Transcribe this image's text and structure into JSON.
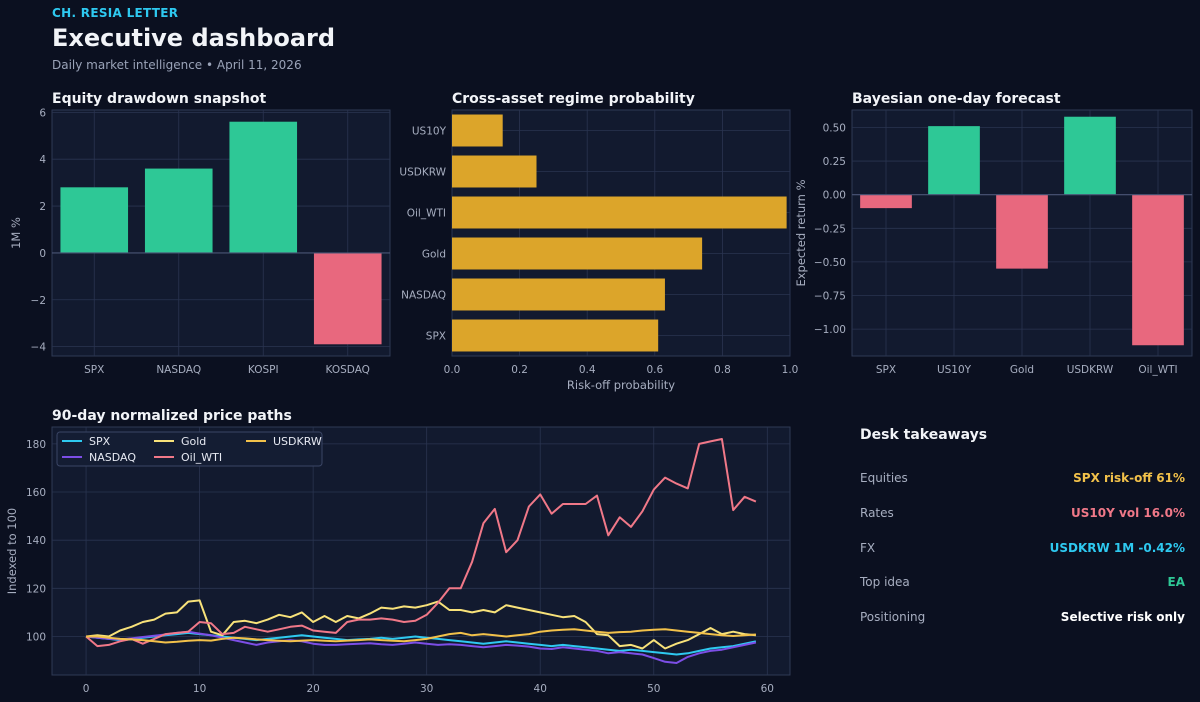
{
  "header": {
    "brand": "CH. RESIA LETTER",
    "title": "Executive dashboard",
    "subtitle": "Daily market intelligence • April 11, 2026"
  },
  "colors": {
    "positive": "#2ec896",
    "negative": "#e8687e",
    "gold_bar": "#dca52a",
    "accent_cyan": "#2ec9f0",
    "panel_bg": "#121a2f"
  },
  "chart_data": [
    {
      "id": "drawdown",
      "type": "bar",
      "title": "Equity drawdown snapshot",
      "ylabel": "1M %",
      "xlabel": "",
      "categories": [
        "SPX",
        "NASDAQ",
        "KOSPI",
        "KOSDAQ"
      ],
      "values": [
        2.8,
        3.6,
        5.6,
        -3.9
      ],
      "ylim": [
        -4.4,
        6.1
      ],
      "yticks": [
        -4,
        -2,
        0,
        2,
        4,
        6
      ],
      "ytick_labels": [
        "−4",
        "−2",
        "0",
        "2",
        "4",
        "6"
      ],
      "grid": true
    },
    {
      "id": "regime",
      "type": "bar",
      "orientation": "horizontal",
      "title": "Cross-asset regime probability",
      "xlabel": "Risk-off probability",
      "ylabel": "",
      "categories": [
        "SPX",
        "NASDAQ",
        "Gold",
        "Oil_WTI",
        "USDKRW",
        "US10Y"
      ],
      "values": [
        0.61,
        0.63,
        0.74,
        0.99,
        0.25,
        0.15
      ],
      "xlim": [
        0,
        1.0
      ],
      "xticks": [
        0,
        0.2,
        0.4,
        0.6,
        0.8,
        1.0
      ],
      "xtick_labels": [
        "0.0",
        "0.2",
        "0.4",
        "0.6",
        "0.8",
        "1.0"
      ],
      "grid": true
    },
    {
      "id": "forecast",
      "type": "bar",
      "title": "Bayesian one-day forecast",
      "ylabel": "Expected return %",
      "xlabel": "",
      "categories": [
        "SPX",
        "US10Y",
        "Gold",
        "USDKRW",
        "Oil_WTI"
      ],
      "values": [
        -0.1,
        0.51,
        -0.55,
        0.58,
        -1.12
      ],
      "ylim": [
        -1.2,
        0.63
      ],
      "yticks": [
        -1.0,
        -0.75,
        -0.5,
        -0.25,
        0.0,
        0.25,
        0.5
      ],
      "ytick_labels": [
        "−1.00",
        "−0.75",
        "−0.50",
        "−0.25",
        "0.00",
        "0.25",
        "0.50"
      ],
      "grid": true
    },
    {
      "id": "paths",
      "type": "line",
      "title": "90-day normalized price paths",
      "ylabel": "Indexed to 100",
      "xlabel": "",
      "xlim": [
        -3,
        62
      ],
      "ylim": [
        84,
        187
      ],
      "xticks": [
        0,
        10,
        20,
        30,
        40,
        50,
        60
      ],
      "yticks": [
        100,
        120,
        140,
        160,
        180
      ],
      "legend": "top-left",
      "grid": true,
      "series": [
        {
          "name": "SPX",
          "color": "#2ec9f0",
          "values": [
            100,
            99.5,
            99,
            98.5,
            98.8,
            99.5,
            100,
            100.5,
            101,
            101.5,
            101,
            100.5,
            100,
            99.5,
            99,
            98.5,
            99,
            99.5,
            100,
            100.5,
            100,
            99.5,
            99,
            98.5,
            98.8,
            99,
            99.5,
            99,
            99.5,
            100,
            99.5,
            99,
            98.5,
            98,
            97.5,
            97,
            97.5,
            98,
            97.5,
            97,
            96.5,
            96,
            96.5,
            96,
            95.5,
            95,
            94.5,
            94,
            94.5,
            94,
            93.5,
            93,
            92.5,
            93,
            94,
            95,
            95.5,
            96,
            97,
            98
          ]
        },
        {
          "name": "NASDAQ",
          "color": "#7c4ee6",
          "values": [
            100,
            99.5,
            99,
            98.8,
            99.2,
            99.8,
            100.3,
            100.8,
            101.5,
            102,
            101.2,
            100.5,
            99.5,
            98.5,
            97.5,
            96.5,
            97.5,
            98,
            98.5,
            98,
            97,
            96.5,
            96.5,
            96.8,
            97,
            97.2,
            96.8,
            96.5,
            97,
            97.5,
            97,
            96.5,
            96.8,
            96.5,
            96,
            95.5,
            96,
            96.5,
            96.2,
            95.8,
            95,
            94.8,
            95.5,
            95,
            94.5,
            94,
            93,
            93.5,
            93,
            92.5,
            91,
            89.5,
            89,
            91.5,
            93,
            94,
            94.5,
            95.5,
            96.5,
            97.5
          ]
        },
        {
          "name": "Gold",
          "color": "#f8e27a",
          "values": [
            100,
            100.5,
            100,
            102.5,
            104,
            106,
            107,
            109.5,
            110,
            114.5,
            115,
            102,
            100.5,
            106,
            106.5,
            105.5,
            107,
            109,
            108,
            110,
            106,
            108.5,
            106,
            108.5,
            107.5,
            109.5,
            112,
            111.5,
            112.5,
            112,
            113,
            114.5,
            111,
            111,
            110,
            111,
            110,
            113,
            112,
            111,
            110,
            109,
            108,
            108.5,
            106,
            101,
            100.5,
            96,
            96.5,
            95,
            98.5,
            95,
            97,
            98.5,
            101,
            103.5,
            101,
            102,
            101,
            100.5
          ]
        },
        {
          "name": "Oil_WTI",
          "color": "#f07888",
          "values": [
            100,
            96,
            96.5,
            98,
            99,
            97,
            99,
            101,
            101.5,
            102,
            106,
            105.5,
            101,
            101.5,
            104,
            103,
            102,
            103,
            104,
            104.5,
            102.5,
            102,
            101.5,
            106,
            107,
            107,
            107.5,
            107,
            106,
            106.5,
            109,
            114,
            120,
            120,
            131,
            147,
            153,
            135,
            140,
            154,
            159,
            151,
            155,
            155,
            155,
            158.5,
            142,
            149.5,
            145.5,
            152,
            161,
            166,
            163.5,
            161.5,
            180,
            181,
            182,
            152.5,
            158,
            156
          ]
        },
        {
          "name": "USDKRW",
          "color": "#f2c14a",
          "values": [
            100,
            100,
            99.5,
            99,
            98.8,
            98.5,
            98,
            97.5,
            97.8,
            98.2,
            98.5,
            98.3,
            99,
            99.5,
            99.2,
            98.8,
            98.5,
            98.2,
            98,
            98.3,
            98.5,
            98.2,
            98,
            98.3,
            98.5,
            98.8,
            98.5,
            98.2,
            98,
            98.5,
            99,
            100,
            101,
            101.5,
            100.5,
            101,
            100.5,
            100,
            100.5,
            101,
            102,
            102.5,
            102.8,
            103,
            102.5,
            102,
            101.5,
            101.8,
            102,
            102.5,
            102.8,
            103,
            102.5,
            102,
            101.5,
            101,
            100.5,
            100.2,
            100.5,
            100.8
          ]
        }
      ]
    }
  ],
  "panel": {
    "title": "Desk takeaways",
    "rows": [
      {
        "label": "Equities",
        "value": "SPX risk-off 61%",
        "color": "#f2c14a"
      },
      {
        "label": "Rates",
        "value": "US10Y vol 16.0%",
        "color": "#f07888"
      },
      {
        "label": "FX",
        "value": "USDKRW 1M -0.42%",
        "color": "#2ec9f0"
      },
      {
        "label": "Top idea",
        "value": "EA",
        "color": "#2ec896"
      },
      {
        "label": "Positioning",
        "value": "Selective risk only",
        "color": "#ffffff"
      }
    ]
  }
}
